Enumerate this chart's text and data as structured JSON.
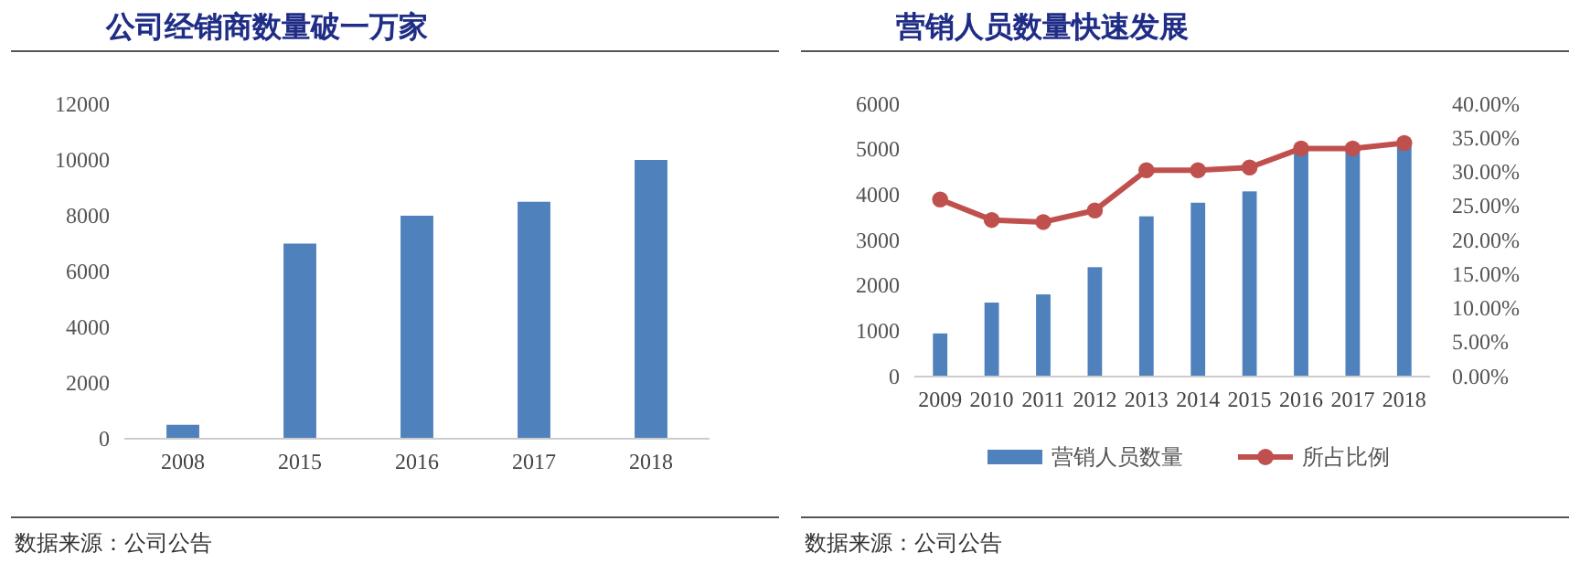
{
  "chart_data": [
    {
      "type": "bar",
      "title": "公司经销商数量破一万家",
      "categories": [
        "2008",
        "2015",
        "2016",
        "2017",
        "2018"
      ],
      "series": [
        {
          "color": "#4f81bd",
          "values": [
            500,
            7000,
            8000,
            8500,
            10000
          ]
        }
      ],
      "ylim": [
        0,
        12000
      ],
      "yticks": [
        0,
        2000,
        4000,
        6000,
        8000,
        10000,
        12000
      ],
      "legend": false,
      "grid": false,
      "annotations": [
        "数据来源：公司公告"
      ]
    },
    {
      "type": "bar",
      "title": "营销人员数量快速发展",
      "categories": [
        "2009",
        "2010",
        "2011",
        "2012",
        "2013",
        "2014",
        "2015",
        "2016",
        "2017",
        "2018"
      ],
      "series": [
        {
          "name": "营销人员数量",
          "color": "#4f81bd",
          "values": [
            950,
            1630,
            1810,
            2410,
            3530,
            3830,
            4080,
            4950,
            4950,
            5100
          ]
        },
        {
          "name": "所占比例",
          "type": "line",
          "axis": "y2",
          "color": "#c0504d",
          "marker": "circle",
          "values": [
            26.0,
            23.0,
            22.7,
            24.4,
            30.3,
            30.3,
            30.7,
            33.5,
            33.5,
            34.3
          ]
        }
      ],
      "ylim": [
        0,
        6000
      ],
      "yticks": [
        0,
        1000,
        2000,
        3000,
        4000,
        5000,
        6000
      ],
      "y2lim": [
        0,
        40
      ],
      "y2ticks": [
        {
          "value": 0,
          "label": "0.00%"
        },
        {
          "value": 5,
          "label": "5.00%"
        },
        {
          "value": 10,
          "label": "10.00%"
        },
        {
          "value": 15,
          "label": "15.00%"
        },
        {
          "value": 20,
          "label": "20.00%"
        },
        {
          "value": 25,
          "label": "25.00%"
        },
        {
          "value": 30,
          "label": "30.00%"
        },
        {
          "value": 35,
          "label": "35.00%"
        },
        {
          "value": 40,
          "label": "40.00%"
        }
      ],
      "legend": "bottom",
      "grid": false,
      "annotations": [
        "数据来源：公司公告"
      ]
    }
  ]
}
